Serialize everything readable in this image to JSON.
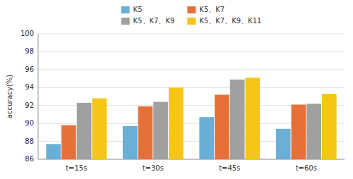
{
  "chart_data": {
    "type": "bar",
    "ylabel": "accuracy(%)",
    "categories": [
      "t=15s",
      "t=30s",
      "t=45s",
      "t=60s"
    ],
    "series": [
      {
        "name": "K5",
        "color": "#6baed6",
        "values": [
          87.7,
          89.7,
          90.7,
          89.4
        ]
      },
      {
        "name": "K5、K7",
        "color": "#e6703a",
        "values": [
          89.8,
          91.9,
          93.2,
          92.1
        ]
      },
      {
        "name": "K5、K7、K9",
        "color": "#a0a0a0",
        "values": [
          92.3,
          92.4,
          94.9,
          92.2
        ]
      },
      {
        "name": "K5、K7、K9、K11",
        "color": "#f5c518",
        "values": [
          92.8,
          94.0,
          95.1,
          93.3
        ]
      }
    ],
    "ylim": [
      86,
      100
    ],
    "yticks": [
      86,
      88,
      90,
      92,
      94,
      96,
      98,
      100
    ],
    "grid": true,
    "legend": "top"
  }
}
